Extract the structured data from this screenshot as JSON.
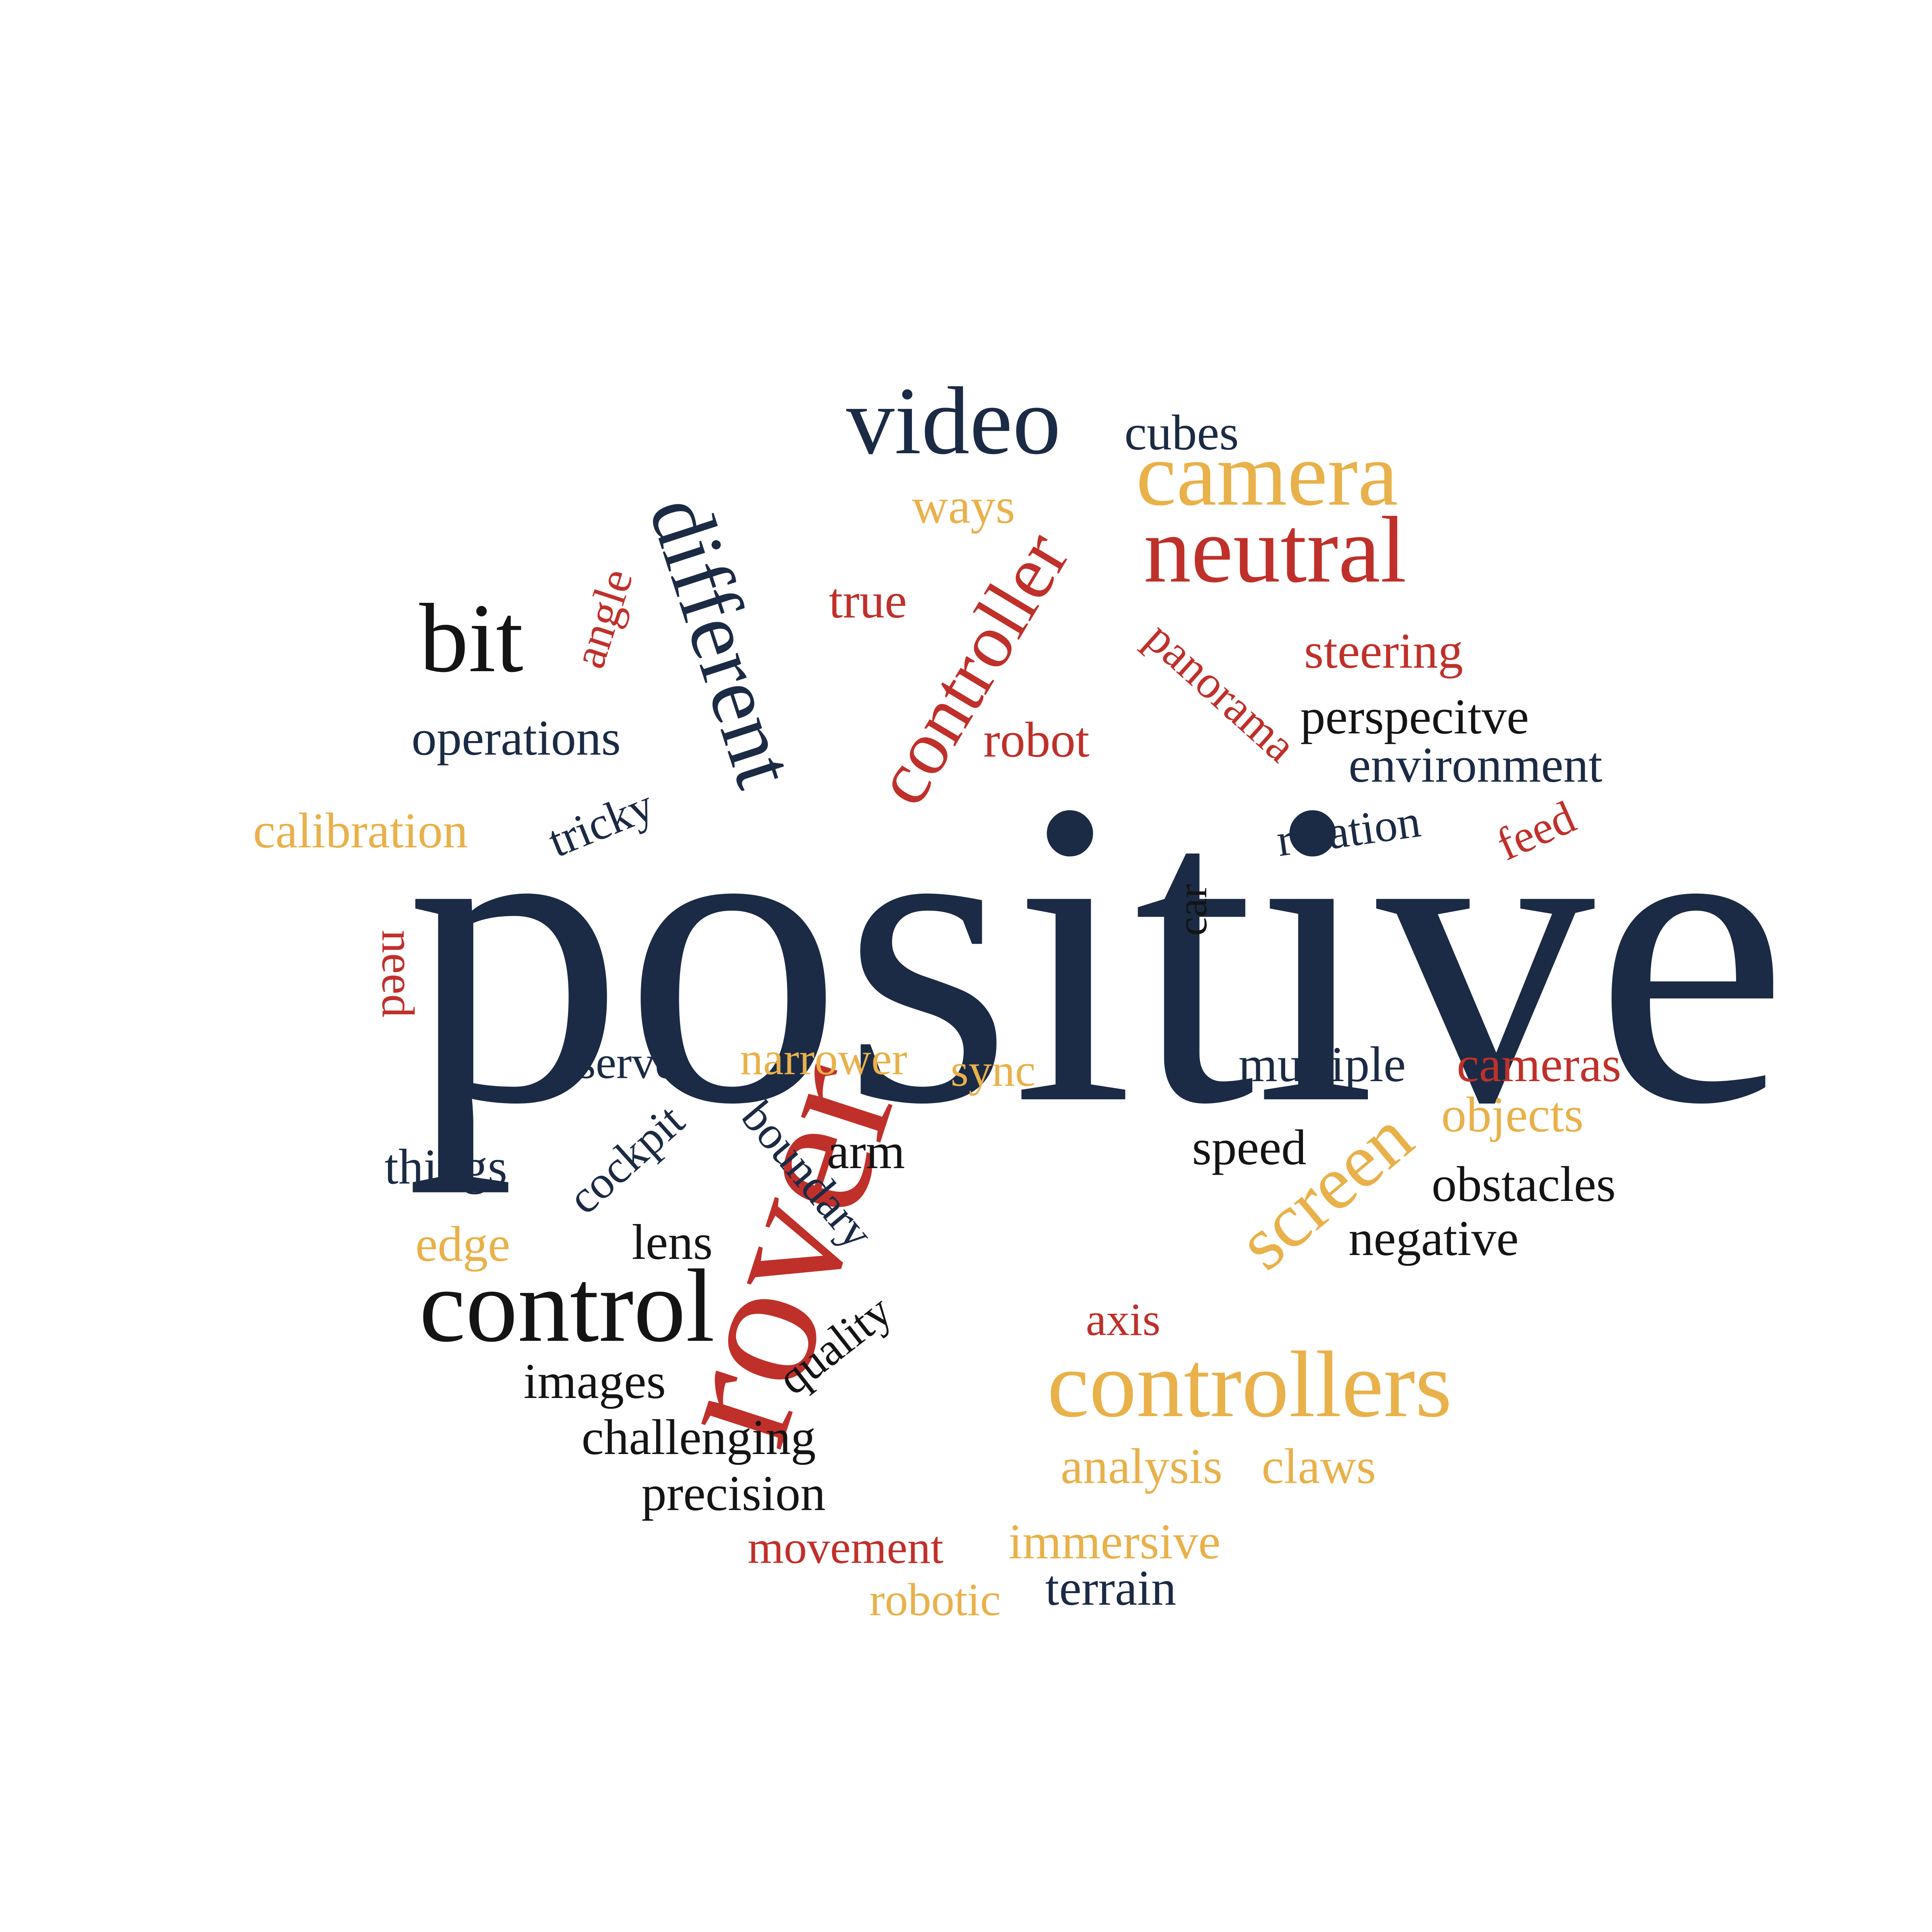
{
  "colors": {
    "navy": "#1b2b45",
    "black": "#141414",
    "red": "#c0302a",
    "gold": "#e9b14a",
    "background": "#ffffff"
  },
  "words": {
    "positive": "positive",
    "rover": "rover",
    "controllers": "controllers",
    "control": "control",
    "screen": "screen",
    "controller": "controller",
    "different": "different",
    "video": "video",
    "camera": "camera",
    "neutral": "neutral",
    "bit": "bit",
    "cubes": "cubes",
    "ways": "ways",
    "true": "true",
    "angle": "angle",
    "panorama": "panorama",
    "steering": "steering",
    "perspecitve": "perspecitve",
    "environment": "environment",
    "operations": "operations",
    "robot": "robot",
    "calibration": "calibration",
    "tricky": "tricky",
    "rotation": "rotation",
    "feed": "feed",
    "car": "car",
    "need": "need",
    "servo": "servo",
    "narrower": "narrower",
    "sync": "sync",
    "multiple": "multiple",
    "cameras": "cameras",
    "objects": "objects",
    "things": "things",
    "cockpit": "cockpit",
    "boundary": "boundary",
    "arm": "arm",
    "speed": "speed",
    "obstacles": "obstacles",
    "edge": "edge",
    "lens": "lens",
    "negative": "negative",
    "quality": "quality",
    "axis": "axis",
    "images": "images",
    "challenging": "challenging",
    "analysis": "analysis",
    "claws": "claws",
    "precision": "precision",
    "movement": "movement",
    "immersive": "immersive",
    "robotic": "robotic",
    "terrain": "terrain"
  }
}
